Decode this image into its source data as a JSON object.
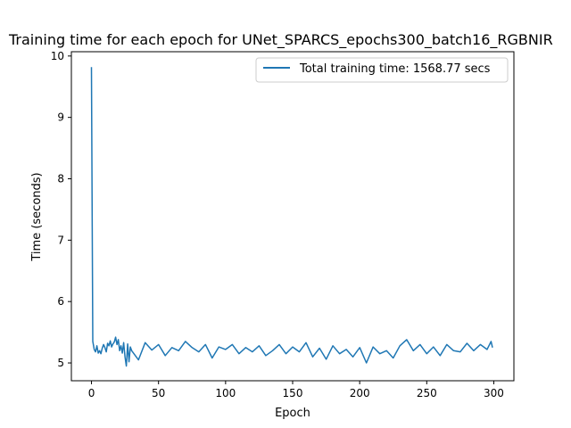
{
  "chart_data": {
    "type": "line",
    "title": "Training time for each epoch for UNet_SPARCS_epochs300_batch16_RGBNIR",
    "xlabel": "Epoch",
    "ylabel": "Time (seconds)",
    "xlim": [
      -15,
      315
    ],
    "ylim": [
      4.71,
      10.07
    ],
    "xticks": [
      0,
      50,
      100,
      150,
      200,
      250,
      300
    ],
    "yticks": [
      5,
      6,
      7,
      8,
      9,
      10
    ],
    "grid": false,
    "legend_position": "top-right",
    "series": [
      {
        "name": "Total training time: 1568.77 secs",
        "color": "#1f77b4",
        "x": [
          0,
          1,
          2,
          3,
          4,
          5,
          6,
          7,
          8,
          9,
          10,
          11,
          12,
          13,
          14,
          15,
          16,
          17,
          18,
          19,
          20,
          21,
          22,
          23,
          24,
          25,
          26,
          27,
          28,
          29,
          30,
          35,
          40,
          45,
          50,
          55,
          60,
          65,
          70,
          75,
          80,
          85,
          90,
          95,
          100,
          105,
          110,
          115,
          120,
          125,
          130,
          135,
          140,
          145,
          150,
          155,
          160,
          165,
          170,
          175,
          180,
          185,
          190,
          195,
          200,
          205,
          210,
          215,
          220,
          225,
          230,
          235,
          240,
          245,
          250,
          255,
          260,
          265,
          270,
          275,
          280,
          285,
          290,
          295,
          298,
          299
        ],
        "y": [
          9.82,
          5.35,
          5.22,
          5.18,
          5.28,
          5.16,
          5.2,
          5.15,
          5.24,
          5.3,
          5.25,
          5.18,
          5.32,
          5.28,
          5.36,
          5.26,
          5.31,
          5.34,
          5.42,
          5.3,
          5.38,
          5.2,
          5.28,
          5.16,
          5.33,
          5.1,
          4.95,
          5.31,
          5.02,
          5.26,
          5.2,
          5.05,
          5.33,
          5.21,
          5.3,
          5.12,
          5.25,
          5.2,
          5.35,
          5.25,
          5.18,
          5.3,
          5.08,
          5.26,
          5.22,
          5.3,
          5.15,
          5.25,
          5.18,
          5.28,
          5.12,
          5.2,
          5.3,
          5.15,
          5.26,
          5.18,
          5.33,
          5.1,
          5.24,
          5.06,
          5.28,
          5.15,
          5.22,
          5.1,
          5.25,
          5.0,
          5.26,
          5.15,
          5.2,
          5.08,
          5.28,
          5.38,
          5.2,
          5.3,
          5.15,
          5.26,
          5.12,
          5.3,
          5.2,
          5.18,
          5.32,
          5.2,
          5.3,
          5.22,
          5.35,
          5.25
        ]
      }
    ]
  }
}
